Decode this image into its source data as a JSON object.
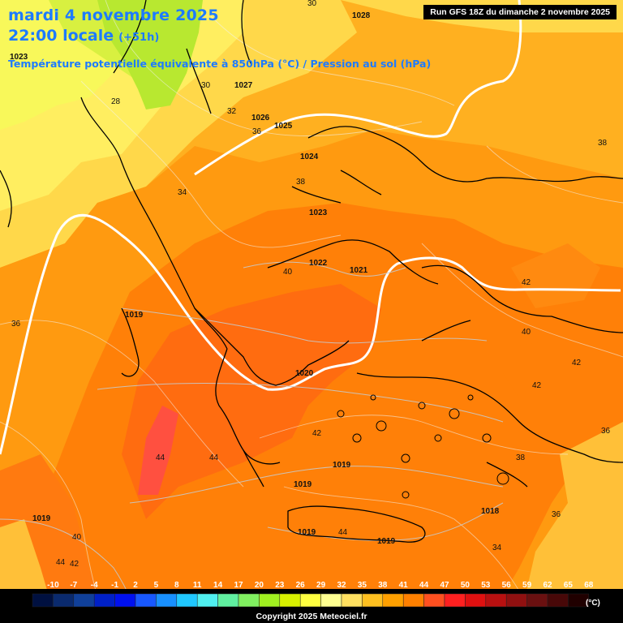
{
  "header": {
    "date": "mardi 4 novembre 2025",
    "time": "22:00 locale",
    "lead": "(+51h)",
    "parameter": "Température potentielle équivalente à 850hPa (°C) / Pression au sol (hPa)",
    "run": "Run GFS 18Z du dimanche 2 novembre 2025"
  },
  "legend": {
    "values": [
      "-10",
      "-7",
      "-4",
      "-1",
      "2",
      "5",
      "8",
      "11",
      "14",
      "17",
      "20",
      "23",
      "26",
      "29",
      "32",
      "35",
      "38",
      "41",
      "44",
      "47",
      "50",
      "53",
      "56",
      "59",
      "62",
      "65",
      "68"
    ],
    "unit": "(°C)",
    "colors": [
      "#001040",
      "#0a2a6e",
      "#10409a",
      "#0020c8",
      "#0010f0",
      "#1858ff",
      "#1890ff",
      "#20c8ff",
      "#50f0f0",
      "#60f0a0",
      "#80f060",
      "#a0f020",
      "#d8f000",
      "#ffff40",
      "#ffff90",
      "#ffe060",
      "#ffc020",
      "#ffa000",
      "#ff8000",
      "#ff5020",
      "#ff2020",
      "#e01010",
      "#b81010",
      "#901010",
      "#6a1010",
      "#480808",
      "#200000"
    ]
  },
  "map_labels": {
    "pressure": [
      "1028",
      "1027",
      "1026",
      "1025",
      "1024",
      "1023",
      "1023",
      "1022",
      "1021",
      "1020",
      "1019",
      "1019",
      "1019",
      "1019",
      "1019",
      "1019",
      "1018"
    ],
    "theta_e": [
      "30",
      "28",
      "30",
      "32",
      "36",
      "34",
      "38",
      "38",
      "36",
      "40",
      "42",
      "40",
      "42",
      "42",
      "36",
      "44",
      "44",
      "42",
      "44",
      "38",
      "36",
      "34",
      "40",
      "44",
      "42"
    ]
  },
  "copyright": "Copyright 2025 Meteociel.fr"
}
